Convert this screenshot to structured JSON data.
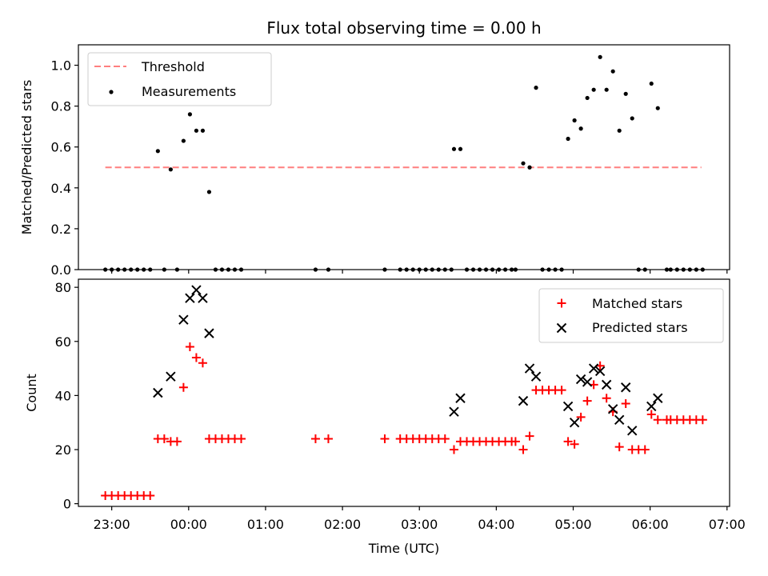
{
  "chart_data": [
    {
      "type": "scatter",
      "title": "Flux total observing time = 0.00 h",
      "ylabel": "Matched/Predicted stars",
      "xlabel": "",
      "ylim": [
        0,
        1.1
      ],
      "y_ticks": [
        "0.0",
        "0.2",
        "0.4",
        "0.6",
        "0.8",
        "1.0"
      ],
      "grid": false,
      "legend_position": "upper-left",
      "threshold": {
        "name": "Threshold",
        "value": 0.5,
        "x_start": "22:55",
        "x_end": "06:40",
        "color": "#ff7f7f"
      },
      "series": [
        {
          "name": "Measurements",
          "color": "#000000",
          "points": [
            [
              "22:55",
              0
            ],
            [
              "23:00",
              0
            ],
            [
              "23:05",
              0
            ],
            [
              "23:10",
              0
            ],
            [
              "23:15",
              0
            ],
            [
              "23:20",
              0
            ],
            [
              "23:25",
              0
            ],
            [
              "23:30",
              0
            ],
            [
              "23:36",
              0.58
            ],
            [
              "23:41",
              0
            ],
            [
              "23:46",
              0.49
            ],
            [
              "23:51",
              0
            ],
            [
              "23:56",
              0.63
            ],
            [
              "00:01",
              0.76
            ],
            [
              "00:06",
              0.68
            ],
            [
              "00:11",
              0.68
            ],
            [
              "00:16",
              0.38
            ],
            [
              "00:21",
              0
            ],
            [
              "00:26",
              0
            ],
            [
              "00:31",
              0
            ],
            [
              "00:36",
              0
            ],
            [
              "00:41",
              0
            ],
            [
              "01:39",
              0
            ],
            [
              "01:49",
              0
            ],
            [
              "02:33",
              0
            ],
            [
              "02:45",
              0
            ],
            [
              "02:50",
              0
            ],
            [
              "02:55",
              0
            ],
            [
              "03:00",
              0
            ],
            [
              "03:05",
              0
            ],
            [
              "03:10",
              0
            ],
            [
              "03:15",
              0
            ],
            [
              "03:20",
              0
            ],
            [
              "03:25",
              0
            ],
            [
              "03:27",
              0.59
            ],
            [
              "03:32",
              0.59
            ],
            [
              "03:37",
              0
            ],
            [
              "03:42",
              0
            ],
            [
              "03:47",
              0
            ],
            [
              "03:52",
              0
            ],
            [
              "03:57",
              0
            ],
            [
              "04:02",
              0
            ],
            [
              "04:07",
              0
            ],
            [
              "04:12",
              0
            ],
            [
              "04:15",
              0
            ],
            [
              "04:21",
              0.52
            ],
            [
              "04:26",
              0.5
            ],
            [
              "04:31",
              0.89
            ],
            [
              "04:36",
              0
            ],
            [
              "04:41",
              0
            ],
            [
              "04:46",
              0
            ],
            [
              "04:51",
              0
            ],
            [
              "04:56",
              0.64
            ],
            [
              "05:01",
              0.73
            ],
            [
              "05:06",
              0.69
            ],
            [
              "05:11",
              0.84
            ],
            [
              "05:16",
              0.88
            ],
            [
              "05:21",
              1.04
            ],
            [
              "05:26",
              0.88
            ],
            [
              "05:31",
              0.97
            ],
            [
              "05:36",
              0.68
            ],
            [
              "05:41",
              0.86
            ],
            [
              "05:46",
              0.74
            ],
            [
              "05:51",
              0
            ],
            [
              "05:56",
              0
            ],
            [
              "06:01",
              0.91
            ],
            [
              "06:06",
              0.79
            ],
            [
              "06:13",
              0
            ],
            [
              "06:16",
              0
            ],
            [
              "06:21",
              0
            ],
            [
              "06:26",
              0
            ],
            [
              "06:31",
              0
            ],
            [
              "06:36",
              0
            ],
            [
              "06:41",
              0
            ]
          ]
        }
      ]
    },
    {
      "type": "scatter",
      "title": "",
      "xlabel": "Time (UTC)",
      "ylabel": "Count",
      "ylim": [
        -1,
        83
      ],
      "y_ticks": [
        "0",
        "20",
        "40",
        "60",
        "80"
      ],
      "x_ticks": [
        "23:00",
        "00:00",
        "01:00",
        "02:00",
        "03:00",
        "04:00",
        "05:00",
        "06:00",
        "07:00"
      ],
      "xlim": [
        "22:34",
        "07:02"
      ],
      "grid": false,
      "legend_position": "upper-right",
      "series": [
        {
          "name": "Matched stars",
          "marker": "+",
          "color": "#ff0000",
          "points": [
            [
              "22:55",
              3
            ],
            [
              "23:00",
              3
            ],
            [
              "23:05",
              3
            ],
            [
              "23:10",
              3
            ],
            [
              "23:15",
              3
            ],
            [
              "23:20",
              3
            ],
            [
              "23:25",
              3
            ],
            [
              "23:30",
              3
            ],
            [
              "23:36",
              24
            ],
            [
              "23:41",
              24
            ],
            [
              "23:46",
              23
            ],
            [
              "23:51",
              23
            ],
            [
              "23:56",
              43
            ],
            [
              "00:01",
              58
            ],
            [
              "00:06",
              54
            ],
            [
              "00:11",
              52
            ],
            [
              "00:16",
              24
            ],
            [
              "00:21",
              24
            ],
            [
              "00:26",
              24
            ],
            [
              "00:31",
              24
            ],
            [
              "00:36",
              24
            ],
            [
              "00:41",
              24
            ],
            [
              "01:39",
              24
            ],
            [
              "01:49",
              24
            ],
            [
              "02:33",
              24
            ],
            [
              "02:45",
              24
            ],
            [
              "02:50",
              24
            ],
            [
              "02:55",
              24
            ],
            [
              "03:00",
              24
            ],
            [
              "03:05",
              24
            ],
            [
              "03:10",
              24
            ],
            [
              "03:15",
              24
            ],
            [
              "03:20",
              24
            ],
            [
              "03:27",
              20
            ],
            [
              "03:32",
              23
            ],
            [
              "03:37",
              23
            ],
            [
              "03:42",
              23
            ],
            [
              "03:47",
              23
            ],
            [
              "03:52",
              23
            ],
            [
              "03:57",
              23
            ],
            [
              "04:02",
              23
            ],
            [
              "04:07",
              23
            ],
            [
              "04:12",
              23
            ],
            [
              "04:15",
              23
            ],
            [
              "04:21",
              20
            ],
            [
              "04:26",
              25
            ],
            [
              "04:31",
              42
            ],
            [
              "04:36",
              42
            ],
            [
              "04:41",
              42
            ],
            [
              "04:46",
              42
            ],
            [
              "04:51",
              42
            ],
            [
              "04:56",
              23
            ],
            [
              "05:01",
              22
            ],
            [
              "05:06",
              32
            ],
            [
              "05:11",
              38
            ],
            [
              "05:16",
              44
            ],
            [
              "05:21",
              51
            ],
            [
              "05:26",
              39
            ],
            [
              "05:31",
              34
            ],
            [
              "05:36",
              21
            ],
            [
              "05:41",
              37
            ],
            [
              "05:46",
              20
            ],
            [
              "05:51",
              20
            ],
            [
              "05:56",
              20
            ],
            [
              "06:01",
              33
            ],
            [
              "06:06",
              31
            ],
            [
              "06:13",
              31
            ],
            [
              "06:16",
              31
            ],
            [
              "06:21",
              31
            ],
            [
              "06:26",
              31
            ],
            [
              "06:31",
              31
            ],
            [
              "06:36",
              31
            ],
            [
              "06:41",
              31
            ]
          ]
        },
        {
          "name": "Predicted stars",
          "marker": "x",
          "color": "#000000",
          "points": [
            [
              "23:36",
              41
            ],
            [
              "23:46",
              47
            ],
            [
              "23:56",
              68
            ],
            [
              "00:01",
              76
            ],
            [
              "00:06",
              79
            ],
            [
              "00:11",
              76
            ],
            [
              "00:16",
              63
            ],
            [
              "03:27",
              34
            ],
            [
              "03:32",
              39
            ],
            [
              "04:21",
              38
            ],
            [
              "04:26",
              50
            ],
            [
              "04:31",
              47
            ],
            [
              "04:56",
              36
            ],
            [
              "05:01",
              30
            ],
            [
              "05:06",
              46
            ],
            [
              "05:11",
              45
            ],
            [
              "05:16",
              50
            ],
            [
              "05:21",
              49
            ],
            [
              "05:26",
              44
            ],
            [
              "05:31",
              35
            ],
            [
              "05:36",
              31
            ],
            [
              "05:41",
              43
            ],
            [
              "05:46",
              27
            ],
            [
              "06:01",
              36
            ],
            [
              "06:06",
              39
            ]
          ]
        }
      ]
    }
  ]
}
